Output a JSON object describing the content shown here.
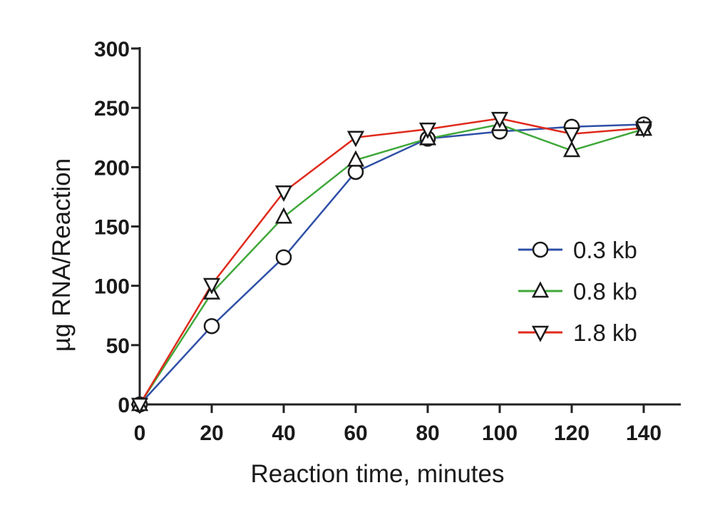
{
  "chart_data": {
    "type": "line",
    "title": "",
    "xlabel": "Reaction time, minutes",
    "ylabel": "µg RNA/Reaction",
    "xlim": [
      0,
      150
    ],
    "ylim": [
      0,
      300
    ],
    "x_ticks": [
      0,
      20,
      40,
      60,
      80,
      100,
      120,
      140
    ],
    "y_ticks": [
      0,
      50,
      100,
      150,
      200,
      250,
      300
    ],
    "grid": false,
    "legend_position": "right",
    "x": [
      0,
      20,
      40,
      60,
      80,
      100,
      120,
      140
    ],
    "series": [
      {
        "name": "0.3 kb",
        "color": "#2e4fa6",
        "marker": "circle",
        "values": [
          0,
          66,
          124,
          196,
          224,
          230,
          234,
          236
        ]
      },
      {
        "name": "0.8 kb",
        "color": "#3fa83a",
        "marker": "triangle-up",
        "values": [
          0,
          94,
          158,
          206,
          224,
          236,
          214,
          232
        ]
      },
      {
        "name": "1.8 kb",
        "color": "#e02a1c",
        "marker": "triangle-down",
        "values": [
          0,
          101,
          179,
          225,
          232,
          241,
          228,
          233
        ]
      }
    ]
  }
}
